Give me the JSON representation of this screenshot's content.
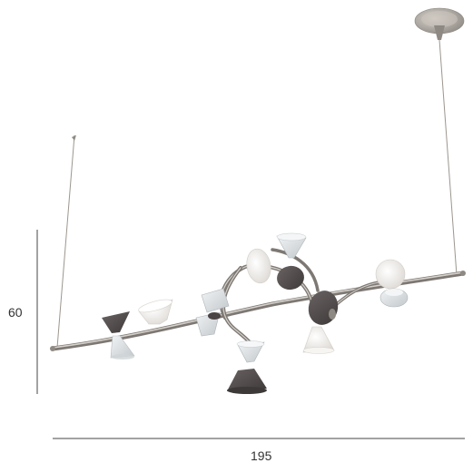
{
  "dimensions": {
    "height_label": "60",
    "width_label": "195"
  },
  "colors": {
    "metal": "#a9a39c",
    "metal_dark": "#7d7873",
    "smoked_glass": "#4a4444",
    "clear_glass": "#d9dde0",
    "frosted_white": "#f3f1ee",
    "dimension_line": "#444444"
  }
}
